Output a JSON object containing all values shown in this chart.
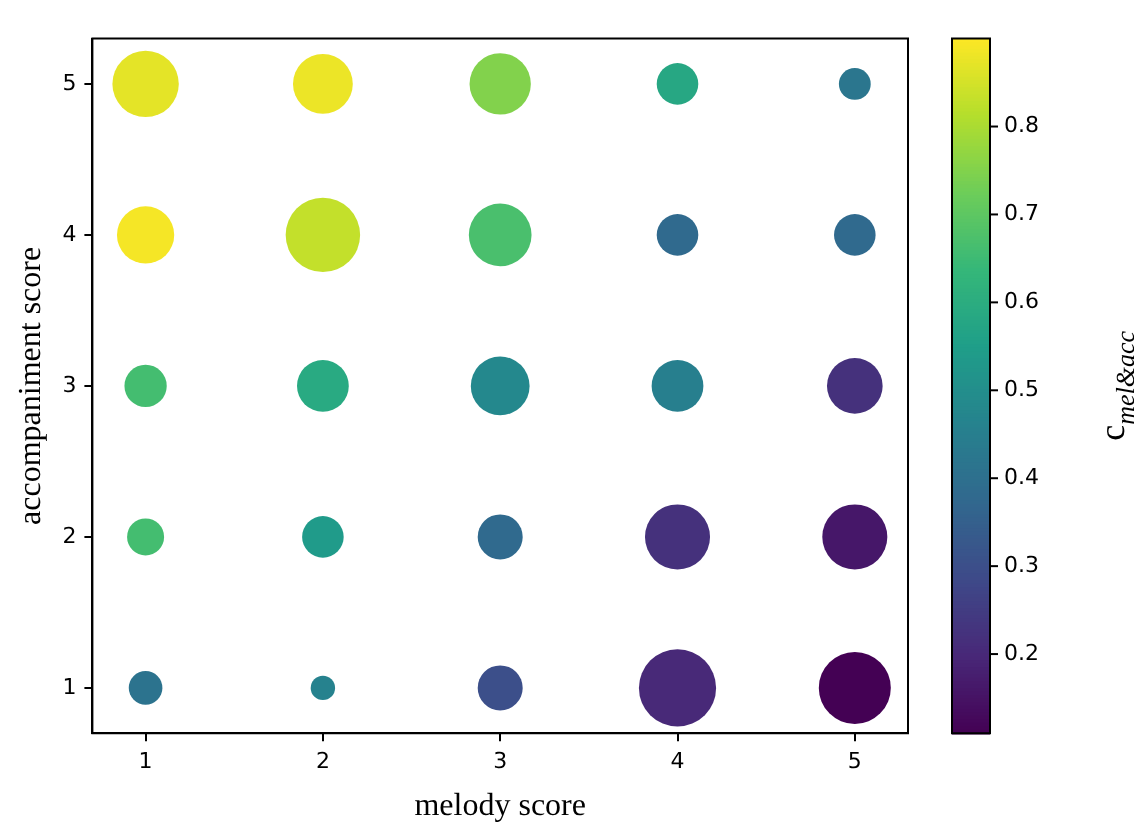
{
  "chart_data": {
    "type": "bubble",
    "xlabel": "melody score",
    "ylabel": "accompaniment score",
    "clabel": "c$_{mel&acc}$",
    "x": [
      1,
      2,
      3,
      4,
      5,
      1,
      2,
      3,
      4,
      5,
      1,
      2,
      3,
      4,
      5,
      1,
      2,
      3,
      4,
      5,
      1,
      2,
      3,
      4,
      5
    ],
    "values": [
      5,
      5,
      5,
      5,
      5,
      4,
      4,
      4,
      4,
      4,
      3,
      3,
      3,
      3,
      3,
      2,
      2,
      2,
      2,
      2,
      1,
      1,
      1,
      1,
      1
    ],
    "sizes": [
      0.74,
      0.6,
      0.63,
      0.29,
      0.17,
      0.55,
      0.93,
      0.66,
      0.29,
      0.29,
      0.3,
      0.45,
      0.58,
      0.45,
      0.52,
      0.23,
      0.29,
      0.34,
      0.71,
      0.71,
      0.19,
      0.1,
      0.34,
      1,
      0.87
    ],
    "cvalues": [
      0.87,
      0.88,
      0.75,
      0.58,
      0.42,
      0.89,
      0.83,
      0.67,
      0.38,
      0.38,
      0.66,
      0.59,
      0.48,
      0.45,
      0.22,
      0.66,
      0.54,
      0.38,
      0.22,
      0.16,
      0.41,
      0.46,
      0.3,
      0.2,
      0.11
    ],
    "xlim": [
      0.7,
      5.3
    ],
    "ylim": [
      0.7,
      5.3
    ],
    "xticks": [
      1,
      2,
      3,
      4,
      5
    ],
    "yticks": [
      1,
      2,
      3,
      4,
      5
    ],
    "clim": [
      0.11,
      0.9
    ],
    "cticks": [
      0.2,
      0.3,
      0.4,
      0.5,
      0.6,
      0.7,
      0.8
    ],
    "grid": false,
    "legend": false
  }
}
